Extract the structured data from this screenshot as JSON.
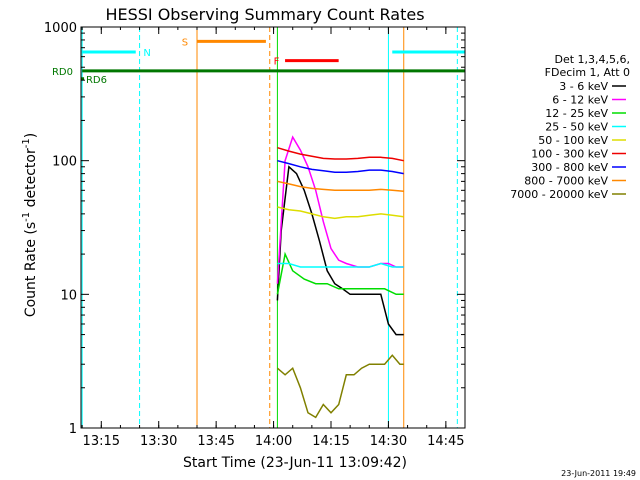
{
  "chart_data": {
    "type": "line",
    "title": "HESSI Observing Summary Count Rates",
    "xlabel": "Start Time (23-Jun-11 13:09:42)",
    "ylabel_main": "Count Rate (s",
    "ylabel_sup1": "-1",
    "ylabel_mid": " detector",
    "ylabel_sup2": "-1",
    "ylabel_end": ")",
    "xlim_min": [
      789.7,
      890
    ],
    "ylim": [
      1,
      1000
    ],
    "yscale": "log",
    "x_ticks": [
      {
        "label": "13:15",
        "min": 795
      },
      {
        "label": "13:30",
        "min": 810
      },
      {
        "label": "13:45",
        "min": 825
      },
      {
        "label": "14:00",
        "min": 840
      },
      {
        "label": "14:15",
        "min": 855
      },
      {
        "label": "14:30",
        "min": 870
      },
      {
        "label": "14:45",
        "min": 885
      }
    ],
    "y_ticks": [
      {
        "label": "1",
        "value": 1
      },
      {
        "label": "10",
        "value": 10
      },
      {
        "label": "100",
        "value": 100
      },
      {
        "label": "1000",
        "value": 1000
      }
    ],
    "legend_header": [
      "Det 1,3,4,5,6,",
      "FDecim 1, Att 0"
    ],
    "legend_position": "right",
    "series": [
      {
        "name": "3 - 6 keV",
        "color": "#000000",
        "points": [
          [
            841,
            9
          ],
          [
            842,
            30
          ],
          [
            844,
            90
          ],
          [
            846,
            80
          ],
          [
            848,
            60
          ],
          [
            850,
            40
          ],
          [
            852,
            25
          ],
          [
            854,
            15
          ],
          [
            856,
            12
          ],
          [
            858,
            11
          ],
          [
            860,
            10
          ],
          [
            862,
            10
          ],
          [
            864,
            10
          ],
          [
            866,
            10
          ],
          [
            868,
            10
          ],
          [
            870,
            6
          ],
          [
            872,
            5
          ],
          [
            874,
            5
          ]
        ]
      },
      {
        "name": "6 - 12 keV",
        "color": "#ff00ff",
        "points": [
          [
            841,
            12
          ],
          [
            843,
            100
          ],
          [
            845,
            150
          ],
          [
            847,
            120
          ],
          [
            849,
            90
          ],
          [
            851,
            60
          ],
          [
            853,
            35
          ],
          [
            855,
            22
          ],
          [
            857,
            18
          ],
          [
            859,
            17
          ],
          [
            862,
            16
          ],
          [
            865,
            16
          ],
          [
            868,
            17
          ],
          [
            870,
            17
          ],
          [
            872,
            16
          ],
          [
            874,
            16
          ]
        ]
      },
      {
        "name": "12 - 25 keV",
        "color": "#00dd00",
        "points": [
          [
            841,
            10
          ],
          [
            843,
            20
          ],
          [
            845,
            15
          ],
          [
            848,
            13
          ],
          [
            851,
            12
          ],
          [
            854,
            12
          ],
          [
            857,
            11
          ],
          [
            860,
            11
          ],
          [
            863,
            11
          ],
          [
            866,
            11
          ],
          [
            869,
            11
          ],
          [
            872,
            10
          ],
          [
            874,
            10
          ]
        ]
      },
      {
        "name": "25 - 50 keV",
        "color": "#00ffff",
        "points": [
          [
            841,
            17
          ],
          [
            844,
            17
          ],
          [
            847,
            16
          ],
          [
            850,
            16
          ],
          [
            853,
            16
          ],
          [
            856,
            16
          ],
          [
            859,
            16
          ],
          [
            862,
            16
          ],
          [
            865,
            16
          ],
          [
            868,
            17
          ],
          [
            871,
            16
          ],
          [
            874,
            16
          ]
        ]
      },
      {
        "name": "50 - 100 keV",
        "color": "#dddd00",
        "points": [
          [
            841,
            45
          ],
          [
            844,
            43
          ],
          [
            847,
            42
          ],
          [
            850,
            40
          ],
          [
            853,
            38
          ],
          [
            856,
            37
          ],
          [
            859,
            38
          ],
          [
            862,
            38
          ],
          [
            865,
            39
          ],
          [
            868,
            40
          ],
          [
            871,
            39
          ],
          [
            874,
            38
          ]
        ]
      },
      {
        "name": "100 - 300 keV",
        "color": "#ee0000",
        "points": [
          [
            841,
            125
          ],
          [
            844,
            118
          ],
          [
            847,
            112
          ],
          [
            850,
            108
          ],
          [
            853,
            104
          ],
          [
            856,
            103
          ],
          [
            859,
            103
          ],
          [
            862,
            104
          ],
          [
            865,
            106
          ],
          [
            868,
            106
          ],
          [
            871,
            104
          ],
          [
            874,
            100
          ]
        ]
      },
      {
        "name": "300 - 800 keV",
        "color": "#0000ff",
        "points": [
          [
            841,
            100
          ],
          [
            844,
            95
          ],
          [
            847,
            90
          ],
          [
            850,
            86
          ],
          [
            853,
            84
          ],
          [
            856,
            82
          ],
          [
            859,
            82
          ],
          [
            862,
            83
          ],
          [
            865,
            85
          ],
          [
            868,
            85
          ],
          [
            871,
            83
          ],
          [
            874,
            80
          ]
        ]
      },
      {
        "name": "800 - 7000 keV",
        "color": "#ff8800",
        "points": [
          [
            841,
            70
          ],
          [
            844,
            67
          ],
          [
            847,
            64
          ],
          [
            850,
            62
          ],
          [
            853,
            61
          ],
          [
            856,
            60
          ],
          [
            859,
            60
          ],
          [
            862,
            60
          ],
          [
            865,
            60
          ],
          [
            868,
            61
          ],
          [
            871,
            60
          ],
          [
            874,
            59
          ]
        ]
      },
      {
        "name": "7000 - 20000 keV",
        "color": "#808000",
        "points": [
          [
            841,
            2.8
          ],
          [
            843,
            2.5
          ],
          [
            845,
            2.8
          ],
          [
            847,
            2
          ],
          [
            849,
            1.3
          ],
          [
            851,
            1.2
          ],
          [
            853,
            1.5
          ],
          [
            855,
            1.3
          ],
          [
            857,
            1.5
          ],
          [
            859,
            2.5
          ],
          [
            861,
            2.5
          ],
          [
            863,
            2.8
          ],
          [
            865,
            3
          ],
          [
            867,
            3
          ],
          [
            869,
            3
          ],
          [
            871,
            3.5
          ],
          [
            873,
            3
          ],
          [
            874,
            3
          ]
        ]
      }
    ],
    "vertical_markers": [
      {
        "min": 790,
        "color": "#00ffff",
        "style": "solid"
      },
      {
        "min": 805,
        "color": "#00ffff",
        "style": "dashed"
      },
      {
        "min": 820,
        "color": "#ff8800",
        "style": "solid"
      },
      {
        "min": 839,
        "color": "#ff8800",
        "style": "dashed"
      },
      {
        "min": 841,
        "color": "#00dd00",
        "style": "solid"
      },
      {
        "min": 870,
        "color": "#00ffff",
        "style": "solid"
      },
      {
        "min": 874,
        "color": "#ff8800",
        "style": "solid"
      },
      {
        "min": 888,
        "color": "#00ffff",
        "style": "dashed"
      }
    ],
    "status_bars": [
      {
        "label": "N",
        "color": "#00ffff",
        "level": 650,
        "from": 790,
        "to": 804,
        "label_at": 806,
        "label_color": "#00ffff"
      },
      {
        "label": "",
        "color": "#00ffff",
        "level": 650,
        "from": 871,
        "to": 890
      },
      {
        "label": "S",
        "color": "#ff8800",
        "level": 780,
        "from": 820,
        "to": 838,
        "label_at": 816,
        "label_color": "#ff8800"
      },
      {
        "label": "F",
        "color": "#ff0000",
        "level": 560,
        "from": 843,
        "to": 857,
        "label_at": 840,
        "label_color": "#ff0000"
      },
      {
        "label": "RD0",
        "color": "#007700",
        "level": 470,
        "from": 790,
        "to": 890,
        "label_at": 785,
        "label_color": "#007700"
      },
      {
        "label": "RD6",
        "color": "#007700",
        "level": 410,
        "from": 789.5,
        "to": 790.5,
        "label_at": 791,
        "label_color": "#007700"
      }
    ]
  },
  "footer_date": "23-Jun-2011 19:49"
}
